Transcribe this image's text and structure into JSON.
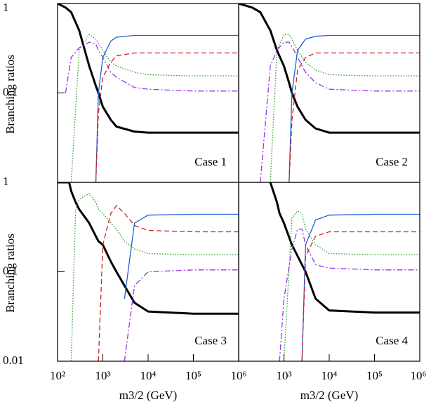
{
  "chart_data": [
    {
      "type": "line",
      "annotation": "Case 1",
      "ylabel": "Branching ratios",
      "xscale": "log",
      "yscale": "log",
      "xlim": [
        100,
        1000000
      ],
      "ylim": [
        0.01,
        1
      ],
      "yticks": [
        0.1,
        1
      ],
      "x": [
        100,
        150,
        200,
        300,
        500,
        700,
        800,
        1000,
        1500,
        2000,
        5000,
        10000,
        100000,
        1000000
      ],
      "series": [
        {
          "color": "#000000",
          "style": "solid",
          "linewidth": 3,
          "values": [
            1,
            0.9,
            0.8,
            0.5,
            0.2,
            0.12,
            0.1,
            0.07,
            0.05,
            0.042,
            0.037,
            0.036,
            0.036,
            0.036
          ]
        },
        {
          "color": "#2a9d2a",
          "style": "dotted",
          "linewidth": 1.3,
          "values": [
            null,
            null,
            0.01,
            0.3,
            0.45,
            0.4,
            0.36,
            0.3,
            0.22,
            0.2,
            0.17,
            0.16,
            0.155,
            0.155
          ]
        },
        {
          "color": "#9933ee",
          "style": "dashdot",
          "linewidth": 1.3,
          "values": [
            null,
            0.1,
            0.25,
            0.32,
            0.37,
            0.35,
            0.3,
            0.25,
            0.17,
            0.15,
            0.115,
            0.11,
            0.105,
            0.105
          ]
        },
        {
          "color": "#1f5fd6",
          "style": "solid",
          "linewidth": 1.3,
          "values": [
            null,
            null,
            null,
            null,
            null,
            0.01,
            0.1,
            0.25,
            0.38,
            0.42,
            0.44,
            0.44,
            0.44,
            0.44
          ]
        },
        {
          "color": "#cc2222",
          "style": "dashed",
          "linewidth": 1.3,
          "values": [
            null,
            null,
            null,
            null,
            null,
            0.01,
            0.06,
            0.15,
            0.22,
            0.26,
            0.28,
            0.28,
            0.28,
            0.28
          ]
        }
      ]
    },
    {
      "type": "line",
      "annotation": "Case 2",
      "xscale": "log",
      "yscale": "log",
      "xlim": [
        100,
        1000000
      ],
      "ylim": [
        0.01,
        1
      ],
      "x": [
        100,
        200,
        300,
        500,
        700,
        1000,
        1300,
        1500,
        2000,
        3000,
        5000,
        10000,
        100000,
        1000000
      ],
      "series": [
        {
          "color": "#000000",
          "style": "solid",
          "linewidth": 3,
          "values": [
            1,
            0.9,
            0.8,
            0.5,
            0.3,
            0.2,
            0.13,
            0.1,
            0.07,
            0.05,
            0.04,
            0.036,
            0.036,
            0.036
          ]
        },
        {
          "color": "#2a9d2a",
          "style": "dotted",
          "linewidth": 1.3,
          "values": [
            null,
            null,
            null,
            0.01,
            0.3,
            0.45,
            0.45,
            0.4,
            0.3,
            0.22,
            0.18,
            0.16,
            0.155,
            0.155
          ]
        },
        {
          "color": "#9933ee",
          "style": "dashdot",
          "linewidth": 1.3,
          "values": [
            null,
            null,
            0.01,
            0.2,
            0.3,
            0.37,
            0.37,
            0.33,
            0.25,
            0.17,
            0.13,
            0.11,
            0.105,
            0.105
          ]
        },
        {
          "color": "#1f5fd6",
          "style": "solid",
          "linewidth": 1.3,
          "values": [
            null,
            null,
            null,
            null,
            null,
            null,
            0.01,
            0.1,
            0.3,
            0.4,
            0.43,
            0.44,
            0.44,
            0.44
          ]
        },
        {
          "color": "#cc2222",
          "style": "dashed",
          "linewidth": 1.3,
          "values": [
            null,
            null,
            null,
            null,
            null,
            null,
            0.01,
            0.05,
            0.18,
            0.25,
            0.28,
            0.28,
            0.28,
            0.28
          ]
        }
      ]
    },
    {
      "type": "line",
      "annotation": "Case 3",
      "ylabel": "Branching ratios",
      "xlabel": "m3/2  (GeV)",
      "xscale": "log",
      "yscale": "log",
      "xlim": [
        100,
        1000000
      ],
      "ylim": [
        0.01,
        1
      ],
      "yticks": [
        0.01,
        0.1,
        1
      ],
      "xticks": [
        {
          "value": 100,
          "label": "10²"
        },
        {
          "value": 1000,
          "label": "10³"
        },
        {
          "value": 10000,
          "label": "10⁴"
        },
        {
          "value": 100000,
          "label": "10⁵"
        },
        {
          "value": 1000000,
          "label": "10⁶"
        }
      ],
      "x": [
        100,
        180,
        200,
        250,
        300,
        500,
        700,
        800,
        1000,
        1500,
        2000,
        3000,
        5000,
        10000,
        100000,
        1000000
      ],
      "series": [
        {
          "color": "#000000",
          "style": "solid",
          "linewidth": 3,
          "values": [
            1,
            1,
            0.8,
            0.6,
            0.5,
            0.35,
            0.25,
            0.22,
            0.2,
            0.13,
            0.1,
            0.07,
            0.045,
            0.036,
            0.034,
            0.034
          ]
        },
        {
          "color": "#2a9d2a",
          "style": "dotted",
          "linewidth": 1.3,
          "values": [
            null,
            null,
            0.01,
            0.5,
            0.65,
            0.75,
            0.6,
            0.5,
            0.45,
            0.35,
            0.3,
            0.22,
            0.18,
            0.16,
            0.155,
            0.155
          ]
        },
        {
          "color": "#9933ee",
          "style": "dashdot",
          "linewidth": 1.3,
          "values": [
            null,
            null,
            null,
            null,
            null,
            null,
            null,
            null,
            null,
            null,
            null,
            0.01,
            0.07,
            0.1,
            0.105,
            0.105
          ]
        },
        {
          "color": "#1f5fd6",
          "style": "solid",
          "linewidth": 1.3,
          "values": [
            null,
            null,
            null,
            null,
            null,
            null,
            null,
            null,
            null,
            null,
            null,
            0.05,
            0.35,
            0.43,
            0.44,
            0.44
          ]
        },
        {
          "color": "#cc2222",
          "style": "dashed",
          "linewidth": 1.3,
          "values": [
            null,
            null,
            null,
            null,
            null,
            null,
            null,
            0.01,
            0.2,
            0.45,
            0.55,
            0.45,
            0.33,
            0.29,
            0.28,
            0.28
          ]
        }
      ]
    },
    {
      "type": "line",
      "annotation": "Case 4",
      "xlabel": "m3/2  (GeV)",
      "xscale": "log",
      "yscale": "log",
      "xlim": [
        100,
        1000000
      ],
      "ylim": [
        0.01,
        1
      ],
      "xticks": [
        {
          "value": 1000,
          "label": "10³"
        },
        {
          "value": 10000,
          "label": "10⁴"
        },
        {
          "value": 100000,
          "label": "10⁵"
        },
        {
          "value": 1000000,
          "label": "10⁶"
        }
      ],
      "x": [
        100,
        500,
        700,
        800,
        1000,
        1500,
        2000,
        2500,
        3000,
        5000,
        10000,
        100000,
        1000000
      ],
      "series": [
        {
          "color": "#000000",
          "style": "solid",
          "linewidth": 3,
          "values": [
            null,
            1,
            0.6,
            0.45,
            0.35,
            0.2,
            0.15,
            0.12,
            0.1,
            0.05,
            0.037,
            0.035,
            0.035
          ]
        },
        {
          "color": "#2a9d2a",
          "style": "dotted",
          "linewidth": 1.3,
          "values": [
            null,
            null,
            null,
            null,
            0.01,
            0.4,
            0.48,
            0.45,
            0.3,
            0.2,
            0.16,
            0.155,
            0.155
          ]
        },
        {
          "color": "#9933ee",
          "style": "dashdot",
          "linewidth": 1.3,
          "values": [
            null,
            null,
            null,
            0.01,
            0.05,
            0.18,
            0.3,
            0.3,
            0.2,
            0.12,
            0.11,
            0.105,
            0.105
          ]
        },
        {
          "color": "#1f5fd6",
          "style": "solid",
          "linewidth": 1.3,
          "values": [
            null,
            null,
            null,
            null,
            null,
            null,
            null,
            0.01,
            0.2,
            0.38,
            0.43,
            0.44,
            0.44
          ]
        },
        {
          "color": "#cc2222",
          "style": "dashed",
          "linewidth": 1.3,
          "values": [
            null,
            null,
            null,
            null,
            null,
            null,
            null,
            0.01,
            0.15,
            0.25,
            0.28,
            0.28,
            0.28
          ]
        }
      ]
    }
  ]
}
